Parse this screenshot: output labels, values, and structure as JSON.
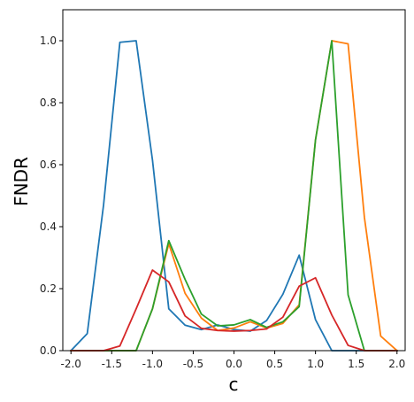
{
  "chart_data": {
    "type": "line",
    "title": "",
    "xlabel": "c",
    "ylabel": "FNDR",
    "xlim": [
      -2.1,
      2.1
    ],
    "ylim": [
      0.0,
      1.1
    ],
    "xticks": [
      "-2.0",
      "-1.5",
      "-1.0",
      "-0.5",
      "0.0",
      "0.5",
      "1.0",
      "1.5",
      "2.0"
    ],
    "yticks": [
      "0.0",
      "0.2",
      "0.4",
      "0.6",
      "0.8",
      "1.0"
    ],
    "grid": false,
    "legend": "none",
    "x": [
      -2.0,
      -1.8,
      -1.6,
      -1.4,
      -1.2,
      -1.0,
      -0.8,
      -0.6,
      -0.4,
      -0.2,
      0.0,
      0.2,
      0.4,
      0.6,
      0.8,
      1.0,
      1.2,
      1.4,
      1.6,
      1.8,
      2.0
    ],
    "series": [
      {
        "color": "#1f77b4",
        "values": [
          0.0,
          0.055,
          0.47,
          0.995,
          1.0,
          0.615,
          0.135,
          0.082,
          0.068,
          0.083,
          0.068,
          0.063,
          0.097,
          0.182,
          0.308,
          0.1,
          0.0,
          0.0,
          0.0,
          0.0,
          0.0
        ]
      },
      {
        "color": "#ff7f0e",
        "values": [
          0.0,
          0.0,
          0.0,
          0.0,
          0.0,
          0.135,
          0.345,
          0.185,
          0.105,
          0.065,
          0.073,
          0.093,
          0.073,
          0.088,
          0.148,
          0.68,
          1.0,
          0.99,
          0.43,
          0.047,
          0.0
        ]
      },
      {
        "color": "#2ca02c",
        "values": [
          0.0,
          0.0,
          0.0,
          0.0,
          0.0,
          0.135,
          0.355,
          0.23,
          0.118,
          0.08,
          0.083,
          0.1,
          0.075,
          0.093,
          0.142,
          0.68,
          1.0,
          0.18,
          0.0,
          0.0,
          0.0
        ]
      },
      {
        "color": "#d62728",
        "values": [
          0.0,
          0.0,
          0.0,
          0.015,
          0.135,
          0.26,
          0.222,
          0.112,
          0.072,
          0.065,
          0.063,
          0.065,
          0.07,
          0.108,
          0.208,
          0.235,
          0.115,
          0.017,
          0.0,
          0.0,
          0.0
        ]
      }
    ]
  }
}
